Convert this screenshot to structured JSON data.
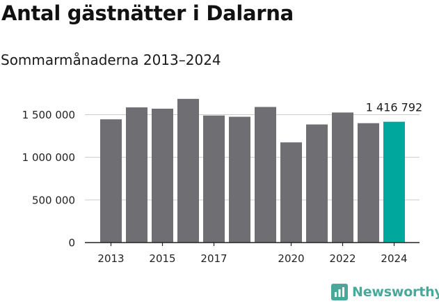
{
  "header": {
    "title": "Antal gästnätter i Dalarna",
    "subtitle": "Sommarmånaderna 2013–2024"
  },
  "brand": {
    "name": "Newsworthy",
    "icon": "newsworthy-logo-icon"
  },
  "colors": {
    "bar": "#6f6e73",
    "highlight": "#00a79d",
    "grid": "#cccccc",
    "axis": "#222222",
    "brand": "#4aa89a"
  },
  "chart_data": {
    "type": "bar",
    "x": [
      2013,
      2014,
      2015,
      2016,
      2017,
      2018,
      2019,
      2020,
      2021,
      2022,
      2023,
      2024
    ],
    "values": [
      1445000,
      1585000,
      1570000,
      1685000,
      1490000,
      1475000,
      1590000,
      1175000,
      1385000,
      1525000,
      1400000,
      1416792
    ],
    "highlight_index": 11,
    "highlight_label": "1 416 792",
    "ylim": [
      0,
      1700000
    ],
    "yticks": [
      0,
      500000,
      1000000,
      1500000
    ],
    "ytick_labels": [
      "0",
      "500 000",
      "1 000 000",
      "1 500 000"
    ],
    "xtick_labels": [
      "2013",
      "2015",
      "2017",
      "2020",
      "2022",
      "2024"
    ],
    "xtick_positions": [
      2013,
      2015,
      2017,
      2020,
      2022,
      2024
    ],
    "grid": true,
    "xlabel": "",
    "ylabel": ""
  }
}
